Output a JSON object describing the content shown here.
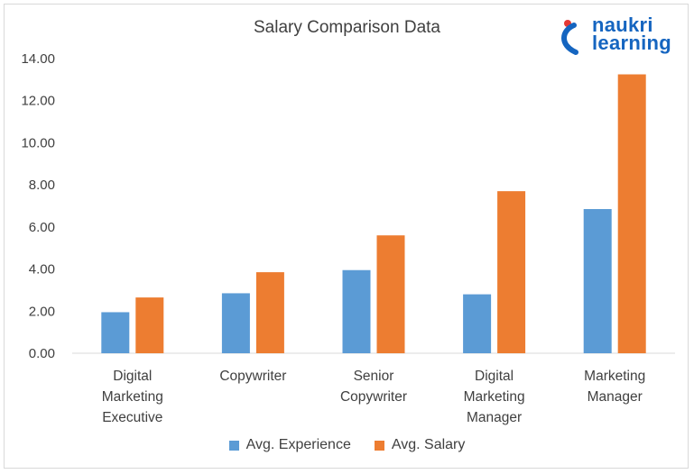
{
  "brand": {
    "logo_line1": "naukri",
    "logo_line2": "learning"
  },
  "chart_data": {
    "type": "bar",
    "title": "Salary Comparison Data",
    "xlabel": "",
    "ylabel": "",
    "ylim": [
      0,
      14
    ],
    "yticks": [
      "0.00",
      "2.00",
      "4.00",
      "6.00",
      "8.00",
      "10.00",
      "12.00",
      "14.00"
    ],
    "categories": [
      [
        "Digital",
        "Marketing",
        "Executive"
      ],
      [
        "Copywriter"
      ],
      [
        "Senior",
        "Copywriter"
      ],
      [
        "Digital",
        "Marketing",
        "Manager"
      ],
      [
        "Marketing",
        "Manager"
      ]
    ],
    "series": [
      {
        "name": "Avg. Experience",
        "color": "#5b9bd5",
        "values": [
          1.95,
          2.85,
          3.95,
          2.8,
          6.85
        ]
      },
      {
        "name": "Avg. Salary",
        "color": "#ed7d31",
        "values": [
          2.65,
          3.85,
          5.6,
          7.7,
          13.25
        ]
      }
    ],
    "grid": false,
    "legend": "bottom"
  }
}
